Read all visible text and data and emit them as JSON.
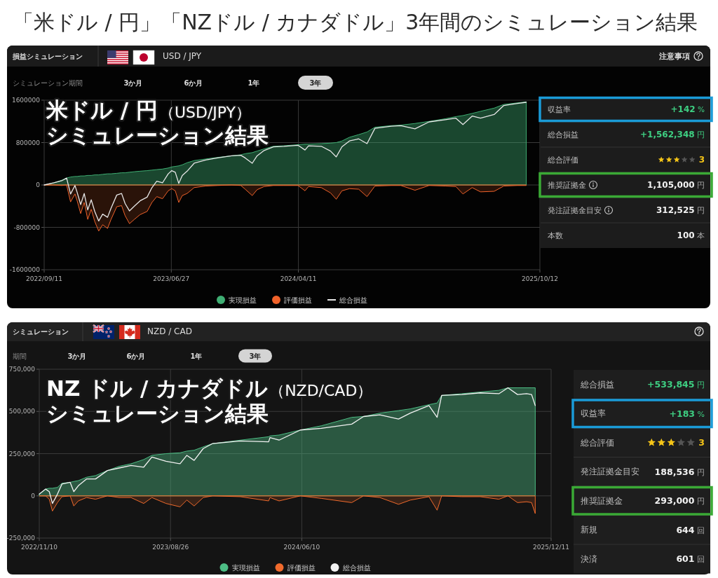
{
  "chart_data": [
    {
      "type": "area",
      "title": "「米ドル / 円」「NZドル / カナダドル」3年間のシミュレーション結果",
      "annotations": [
        "損益シミュレーション",
        "USD / JPY",
        "注意事項",
        "シミュレーション期間",
        "3か月",
        "6か月",
        "1年",
        "3年",
        "米ドル / 円",
        "（USD/JPY）",
        "シミュレーション結果"
      ],
      "x": [
        "2022-09-11",
        "2022-10-03",
        "2022-10-21",
        "2022-11-01",
        "2022-11-10",
        "2022-11-20",
        "2022-11-25",
        "2022-12-03",
        "2022-12-11",
        "2022-12-19",
        "2022-12-27",
        "2023-01-04",
        "2023-01-13",
        "2023-01-22",
        "2023-02-02",
        "2023-02-10",
        "2023-02-23",
        "2023-03-06",
        "2023-03-14",
        "2023-03-24",
        "2023-04-04",
        "2023-04-17",
        "2023-05-03",
        "2023-05-14",
        "2023-05-25",
        "2023-06-07",
        "2023-06-20",
        "2023-06-28",
        "2023-07-06",
        "2023-07-14",
        "2023-07-22",
        "2023-08-02",
        "2023-08-18",
        "2023-09-13",
        "2023-10-10",
        "2023-11-11",
        "2023-12-02",
        "2023-12-12",
        "2023-12-28",
        "2024-01-08",
        "2024-01-24",
        "2024-02-14",
        "2024-03-09",
        "2024-04-10",
        "2024-04-26",
        "2024-05-04",
        "2024-06-02",
        "2024-06-23",
        "2024-07-06",
        "2024-07-19",
        "2024-08-05",
        "2024-08-26",
        "2024-09-14",
        "2024-10-02",
        "2024-11-08",
        "2024-11-30",
        "2025-01-01",
        "2025-02-02",
        "2025-03-11",
        "2025-04-04",
        "2025-04-20",
        "2025-05-11",
        "2025-05-30",
        "2025-06-30",
        "2025-07-22",
        "2025-08-22",
        "2025-09-11"
      ],
      "series": [
        {
          "name": "実現損益",
          "type": "area",
          "color": "#3fae73",
          "values": [
            0,
            40000,
            90000,
            130000,
            150000,
            160000,
            160000,
            170000,
            170000,
            180000,
            180000,
            190000,
            190000,
            200000,
            210000,
            210000,
            220000,
            230000,
            230000,
            240000,
            250000,
            260000,
            270000,
            280000,
            290000,
            300000,
            320000,
            340000,
            350000,
            360000,
            380000,
            420000,
            460000,
            490000,
            520000,
            550000,
            570000,
            590000,
            610000,
            640000,
            680000,
            730000,
            740000,
            760000,
            770000,
            770000,
            780000,
            790000,
            800000,
            830000,
            900000,
            950000,
            1000000,
            1090000,
            1120000,
            1130000,
            1160000,
            1200000,
            1250000,
            1290000,
            1310000,
            1350000,
            1390000,
            1450000,
            1520000,
            1550000,
            1570000
          ]
        },
        {
          "name": "評価損益",
          "type": "area",
          "color": "#f0622a",
          "values": [
            0,
            0,
            -10000,
            0,
            -320000,
            -170000,
            -300000,
            -540000,
            -330000,
            -650000,
            -460000,
            -690000,
            -870000,
            -750000,
            -820000,
            -650000,
            -410000,
            -390000,
            -580000,
            -730000,
            -650000,
            -560000,
            -500000,
            -330000,
            -220000,
            -260000,
            -110000,
            -70000,
            -110000,
            -330000,
            -200000,
            -160000,
            -50000,
            -20000,
            -10000,
            0,
            -10000,
            -80000,
            -200000,
            -90000,
            -30000,
            -10000,
            -10000,
            -10000,
            -110000,
            -30000,
            -50000,
            -150000,
            -270000,
            -110000,
            -70000,
            -80000,
            -220000,
            -20000,
            -10000,
            -10000,
            -100000,
            -10000,
            -20000,
            -30000,
            -170000,
            -50000,
            -130000,
            -120000,
            -20000,
            -10000,
            -10000
          ]
        },
        {
          "name": "総合損益",
          "type": "line",
          "color": "#e6e6e6",
          "values": [
            0,
            40000,
            80000,
            130000,
            -170000,
            -10000,
            -140000,
            -370000,
            -160000,
            -470000,
            -280000,
            -500000,
            -680000,
            -550000,
            -610000,
            -440000,
            -190000,
            -160000,
            -350000,
            -490000,
            -400000,
            -300000,
            -230000,
            -50000,
            70000,
            40000,
            210000,
            270000,
            240000,
            30000,
            180000,
            260000,
            410000,
            470000,
            510000,
            550000,
            560000,
            510000,
            410000,
            550000,
            650000,
            720000,
            730000,
            750000,
            660000,
            740000,
            730000,
            640000,
            530000,
            720000,
            830000,
            870000,
            780000,
            1070000,
            1110000,
            1120000,
            1060000,
            1190000,
            1230000,
            1260000,
            1140000,
            1300000,
            1260000,
            1330000,
            1500000,
            1540000,
            1560000
          ]
        }
      ],
      "xlim": [
        "2022-09-11",
        "2025-10-12"
      ],
      "xticks": [
        {
          "value": "2022-09-11",
          "label": "2022/09/11"
        },
        {
          "value": "2023-06-27",
          "label": "2023/06/27"
        },
        {
          "value": "2024-04-11",
          "label": "2024/04/11"
        },
        {
          "value": "2025-10-12",
          "label": "2025/10/12"
        }
      ],
      "ylim": [
        -1600000,
        1600000
      ],
      "yticks": [
        -1600000,
        -800000,
        0,
        800000,
        1600000
      ],
      "grid": true,
      "legend": "bottom"
    },
    {
      "type": "other",
      "annotations": [
        "収益率",
        "+142 %",
        "総合損益",
        "+1,562,348 円",
        "総合評価",
        "3",
        "推奨証拠金",
        "1,105,000 円",
        "発注証拠金目安",
        "312,525 円",
        "本数",
        "100 本"
      ]
    },
    {
      "type": "area",
      "annotations": [
        "シミュレーション",
        "NZD / CAD",
        "期間",
        "3か月",
        "6か月",
        "1年",
        "3年",
        "NZ ドル / カナダドル",
        "（NZD/CAD）",
        "シミュレーション結果"
      ],
      "x": [
        "2022-11-10",
        "2022-11-24",
        "2022-12-02",
        "2022-12-09",
        "2022-12-20",
        "2022-12-30",
        "2023-01-17",
        "2023-01-25",
        "2023-02-04",
        "2023-02-22",
        "2023-03-14",
        "2023-04-09",
        "2023-05-05",
        "2023-05-31",
        "2023-06-28",
        "2023-07-16",
        "2023-08-16",
        "2023-09-16",
        "2023-10-01",
        "2023-10-17",
        "2023-11-06",
        "2023-11-27",
        "2024-01-27",
        "2024-03-29",
        "2024-04-01",
        "2024-04-21",
        "2024-06-07",
        "2024-07-23",
        "2024-09-28",
        "2024-10-24",
        "2024-11-29",
        "2025-01-09",
        "2025-02-04",
        "2025-03-17",
        "2025-04-04",
        "2025-04-14",
        "2025-05-28",
        "2025-07-08",
        "2025-08-18",
        "2025-09-07",
        "2025-09-28",
        "2025-10-18",
        "2025-10-29",
        "2025-11-06"
      ],
      "series": [
        {
          "name": "実現損益",
          "type": "area",
          "color": "#4dbd85",
          "values": [
            10000,
            40000,
            45000,
            45000,
            50000,
            75000,
            80000,
            85000,
            90000,
            110000,
            120000,
            150000,
            175000,
            190000,
            215000,
            240000,
            250000,
            255000,
            265000,
            270000,
            290000,
            310000,
            330000,
            350000,
            355000,
            360000,
            390000,
            415000,
            465000,
            470000,
            490000,
            505000,
            515000,
            540000,
            550000,
            595000,
            605000,
            615000,
            625000,
            640000,
            640000,
            640000,
            640000,
            640000
          ]
        },
        {
          "name": "評価損益",
          "type": "area",
          "color": "#f06a2c",
          "values": [
            0,
            0,
            -20000,
            -90000,
            -40000,
            -5000,
            0,
            -60000,
            -30000,
            -10000,
            -20000,
            0,
            -10000,
            -10000,
            -45000,
            -10000,
            -45000,
            -65000,
            -25000,
            -60000,
            -10000,
            0,
            -5000,
            -30000,
            -10000,
            -30000,
            0,
            -15000,
            -40000,
            0,
            -10000,
            -50000,
            -25000,
            -5000,
            -85000,
            0,
            -5000,
            -5000,
            -20000,
            0,
            -40000,
            -35000,
            -40000,
            -105000
          ]
        },
        {
          "name": "総合損益",
          "type": "line",
          "color": "#f2f2f2",
          "values": [
            10000,
            40000,
            25000,
            -45000,
            10000,
            70000,
            80000,
            25000,
            60000,
            100000,
            100000,
            150000,
            165000,
            180000,
            170000,
            230000,
            205000,
            190000,
            240000,
            210000,
            280000,
            310000,
            325000,
            320000,
            345000,
            330000,
            390000,
            400000,
            425000,
            470000,
            480000,
            455000,
            490000,
            535000,
            465000,
            595000,
            600000,
            610000,
            605000,
            640000,
            600000,
            605000,
            600000,
            535000
          ]
        }
      ],
      "xlim": [
        "2022-11-10",
        "2025-12-11"
      ],
      "xticks": [
        {
          "value": "2022-11-10",
          "label": "2022/11/10"
        },
        {
          "value": "2023-08-26",
          "label": "2023/08/26"
        },
        {
          "value": "2024-06-10",
          "label": "2024/06/10"
        },
        {
          "value": "2025-12-11",
          "label": "2025/12/11"
        }
      ],
      "ylim": [
        -250000,
        750000
      ],
      "yticks": [
        {
          "value": -250000,
          "label": "-250,000"
        },
        0,
        {
          "value": 250000,
          "label": "250,000"
        },
        {
          "value": 500000,
          "label": "500,000"
        },
        {
          "value": 750000,
          "label": "750,000"
        }
      ],
      "grid": true,
      "legend": "bottom"
    },
    {
      "type": "other",
      "annotations": [
        "総合損益",
        "+533,845 円",
        "収益率",
        "+183 %",
        "総合評価",
        "3",
        "発注証拠金目安",
        "188,536 円",
        "推奨証拠金",
        "293,000 円",
        "新規",
        "644 回",
        "決済",
        "601 回"
      ]
    }
  ]
}
